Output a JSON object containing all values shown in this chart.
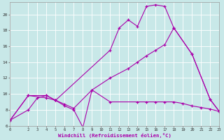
{
  "xlabel": "Windchill (Refroidissement éolien,°C)",
  "xlim": [
    0,
    23
  ],
  "ylim": [
    6,
    21.5
  ],
  "yticks": [
    6,
    8,
    10,
    12,
    14,
    16,
    18,
    20
  ],
  "xticks": [
    0,
    2,
    3,
    4,
    5,
    6,
    7,
    8,
    9,
    10,
    11,
    12,
    13,
    14,
    15,
    16,
    17,
    18,
    19,
    20,
    21,
    22,
    23
  ],
  "bg_color": "#c8e8e8",
  "grid_color": "#ffffff",
  "line_color": "#aa00aa",
  "marker": "+",
  "markersize": 2.5,
  "linewidth": 0.8,
  "lines": [
    {
      "x": [
        0,
        2,
        4,
        5,
        11,
        12,
        13,
        14,
        15,
        16,
        17,
        18,
        20,
        22,
        23
      ],
      "y": [
        6.7,
        9.8,
        9.8,
        9.2,
        15.5,
        18.3,
        19.3,
        18.5,
        21.0,
        21.2,
        21.0,
        18.3,
        15.0,
        9.3,
        7.8
      ]
    },
    {
      "x": [
        0,
        2,
        4,
        5,
        6,
        7,
        8,
        9,
        11,
        14,
        15,
        16,
        17,
        18,
        19,
        20,
        21,
        22,
        23
      ],
      "y": [
        6.7,
        9.8,
        9.5,
        9.2,
        8.5,
        8.0,
        5.8,
        10.5,
        9.0,
        9.0,
        9.0,
        9.0,
        9.0,
        9.0,
        8.8,
        8.5,
        8.3,
        8.1,
        7.8
      ]
    },
    {
      "x": [
        0,
        2,
        3,
        4,
        5,
        6,
        7,
        9,
        11,
        13,
        14,
        15,
        16,
        17,
        18,
        20,
        22,
        23
      ],
      "y": [
        6.7,
        8.0,
        9.5,
        9.8,
        9.2,
        8.7,
        8.2,
        10.5,
        12.0,
        13.2,
        14.0,
        14.8,
        15.5,
        16.2,
        18.3,
        15.0,
        9.3,
        7.8
      ]
    }
  ]
}
